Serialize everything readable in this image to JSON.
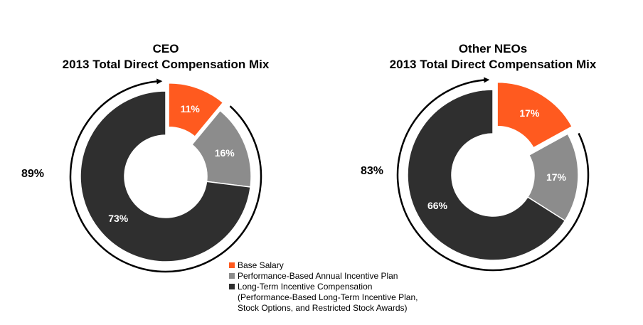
{
  "colors": {
    "base_salary": "#ff5a1f",
    "annual_incentive": "#8c8c8c",
    "long_term": "#2f2f2f"
  },
  "chart_data": [
    {
      "type": "pie",
      "title_lines": [
        "CEO",
        "2013 Total Direct Compensation Mix"
      ],
      "slices": [
        {
          "label": "Base Salary",
          "value": 11,
          "text": "11%"
        },
        {
          "label": "Performance-Based Annual Incentive Plan",
          "value": 16,
          "text": "16%"
        },
        {
          "label": "Long-Term Incentive Compensation",
          "value": 73,
          "text": "73%"
        }
      ],
      "annotation": "89%"
    },
    {
      "type": "pie",
      "title_lines": [
        "Other NEOs",
        "2013 Total Direct Compensation Mix"
      ],
      "slices": [
        {
          "label": "Base Salary",
          "value": 17,
          "text": "17%"
        },
        {
          "label": "Performance-Based Annual Incentive Plan",
          "value": 17,
          "text": "17%"
        },
        {
          "label": "Long-Term Incentive Compensation",
          "value": 66,
          "text": "66%"
        }
      ],
      "annotation": "83%"
    }
  ],
  "legend": [
    {
      "label": "Base Salary",
      "color_key": "base_salary"
    },
    {
      "label": "Performance-Based Annual Incentive Plan",
      "color_key": "annual_incentive"
    },
    {
      "label": "Long-Term Incentive Compensation",
      "color_key": "long_term",
      "sub_lines": [
        "(Performance-Based Long-Term Incentive Plan,",
        "Stock Options, and Restricted Stock Awards)"
      ]
    }
  ]
}
